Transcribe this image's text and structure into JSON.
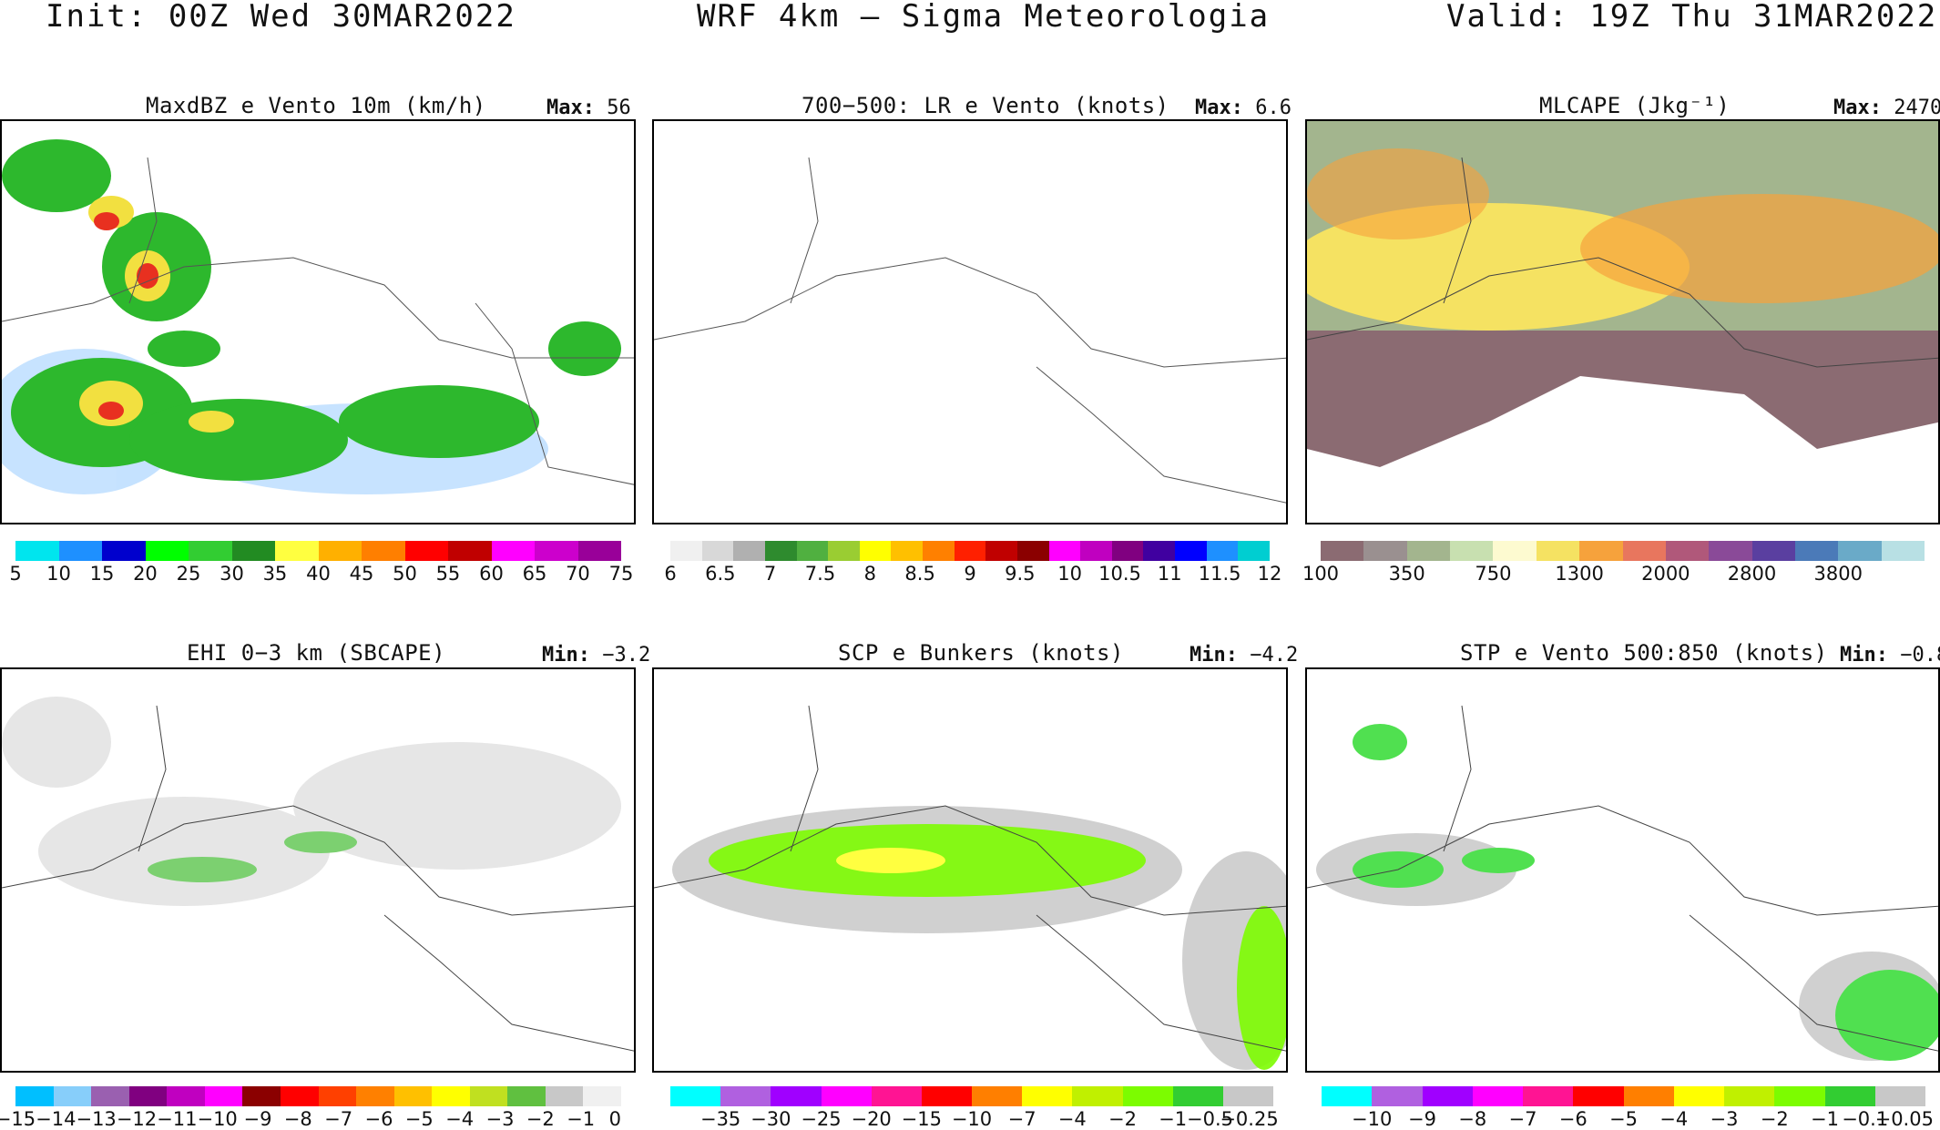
{
  "header": {
    "init": "Init: 00Z Wed 30MAR2022",
    "model": "WRF 4km — Sigma Meteorologia",
    "valid": "Valid: 19Z Thu 31MAR2022"
  },
  "panels": [
    {
      "title": "MaxdBZ e Vento 10m (km/h)",
      "stat_label": "Max:",
      "stat_value": "56",
      "scale_labels": [
        "5",
        "10",
        "15",
        "20",
        "25",
        "30",
        "35",
        "40",
        "45",
        "50",
        "55",
        "60",
        "65",
        "70",
        "75"
      ],
      "scale_colors": [
        "#00e5ee",
        "#1e90ff",
        "#0000cd",
        "#00ff00",
        "#32cd32",
        "#228b22",
        "#008000",
        "#ffff40",
        "#ffb000",
        "#ff7f00",
        "#ff0000",
        "#c00000",
        "#ff00ff",
        "#cc00cc",
        "#990099"
      ]
    },
    {
      "title": "700−500: LR e Vento (knots)",
      "stat_label": "Max:",
      "stat_value": "6.6",
      "scale_labels": [
        "6",
        "6.5",
        "7",
        "7.5",
        "8",
        "8.5",
        "9",
        "9.5",
        "10",
        "10.5",
        "11",
        "11.5",
        "12"
      ]
    },
    {
      "title": "MLCAPE (Jkg⁻¹)",
      "stat_label": "Max:",
      "stat_value": "2470",
      "scale_labels": [
        "100",
        "350",
        "750",
        "1300",
        "2000",
        "2800",
        "3800"
      ],
      "scale_colors": [
        "#8b6b72",
        "#9a9090",
        "#a3b58e",
        "#c8e0b0",
        "#fdfad0",
        "#f5e262",
        "#f6a23c",
        "#e8765e",
        "#b0587a",
        "#8a4a98",
        "#5a3fa0",
        "#4b7ab8",
        "#6aaac8",
        "#b8e0e4"
      ]
    },
    {
      "title": "EHI 0−3 km (SBCAPE)",
      "stat_label": "Min:",
      "stat_value": "−3.2",
      "scale_labels": [
        "−15",
        "−14",
        "−13",
        "−12",
        "−11",
        "−10",
        "−9",
        "−8",
        "−7",
        "−6",
        "−5",
        "−4",
        "−3",
        "−2",
        "−1",
        "0"
      ]
    },
    {
      "title": "SCP e Bunkers (knots)",
      "stat_label": "Min:",
      "stat_value": "−4.2",
      "scale_labels": [
        "−35",
        "−30",
        "−25",
        "−20",
        "−15",
        "−10",
        "−7",
        "−4",
        "−2",
        "−1",
        "−0.5",
        "−0.25"
      ],
      "scale_colors": [
        "#00ffff",
        "#b060e0",
        "#a000ff",
        "#ff00ff",
        "#ff1493",
        "#ff0000",
        "#ff7f00",
        "#ffff00",
        "#c0f000",
        "#7cfc00",
        "#32cd32",
        "#c8c8c8"
      ]
    },
    {
      "title": "STP e Vento 500:850 (knots)",
      "stat_label": "Min:",
      "stat_value": "−0.8",
      "scale_labels": [
        "−10",
        "−9",
        "−8",
        "−7",
        "−6",
        "−5",
        "−4",
        "−3",
        "−2",
        "−1",
        "−0.1",
        "−0.05"
      ],
      "scale_colors": [
        "#00ffff",
        "#b060e0",
        "#a000ff",
        "#ff00ff",
        "#ff1493",
        "#ff0000",
        "#ff7f00",
        "#ffff00",
        "#c0f000",
        "#7cfc00",
        "#32cd32",
        "#c8c8c8"
      ]
    }
  ]
}
